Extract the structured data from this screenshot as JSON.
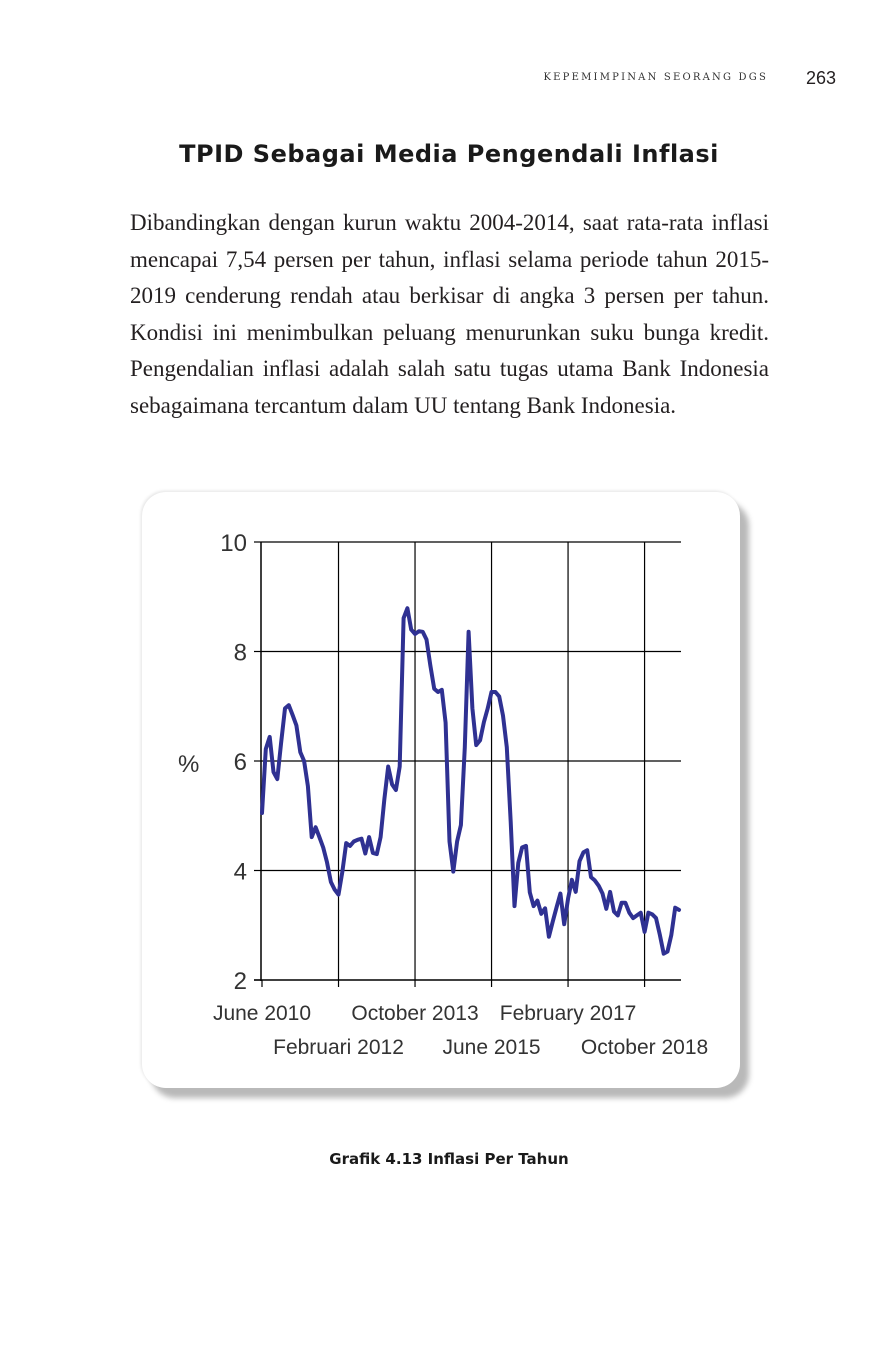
{
  "header": {
    "running_head": "KEPEMIMPINAN SEORANG DGS",
    "page_number": "263"
  },
  "section": {
    "title": "TPID Sebagai Media Pengendali Inflasi",
    "paragraph": "Dibandingkan dengan kurun waktu 2004-2014, saat rata-rata inflasi mencapai 7,54 persen per tahun, inflasi selama periode tahun 2015-2019 cenderung rendah atau berkisar di angka 3 persen per tahun. Kondisi ini menimbulkan peluang menurunkan suku bunga kredit. Pengendalian inflasi adalah salah satu tugas utama Bank Indonesia sebagaimana tercantum dalam UU tentang Bank Indonesia."
  },
  "figure": {
    "caption": "Grafik 4.13 Inflasi Per Tahun"
  },
  "chart_data": {
    "type": "line",
    "title": "",
    "xlabel": "",
    "ylabel": "%",
    "ylim": [
      2,
      10
    ],
    "yticks": [
      2,
      4,
      6,
      8,
      10
    ],
    "grid": true,
    "legend": "none",
    "xtick_labels": [
      {
        "label": "June 2010",
        "index": 0,
        "row": 1
      },
      {
        "label": "Februari 2012",
        "index": 20,
        "row": 2
      },
      {
        "label": "October 2013",
        "index": 40,
        "row": 1
      },
      {
        "label": "June 2015",
        "index": 60,
        "row": 2
      },
      {
        "label": "February 2017",
        "index": 80,
        "row": 1
      },
      {
        "label": "October 2018",
        "index": 100,
        "row": 2
      }
    ],
    "line_color": "#2f3192",
    "series": [
      {
        "x_start": "June 2010",
        "frequency": "monthly",
        "values": [
          5.05,
          6.22,
          6.44,
          5.8,
          5.67,
          6.33,
          6.96,
          7.02,
          6.84,
          6.65,
          6.16,
          6.0,
          5.54,
          4.61,
          4.79,
          4.61,
          4.42,
          4.15,
          3.79,
          3.65,
          3.56,
          3.97,
          4.5,
          4.45,
          4.53,
          4.56,
          4.58,
          4.31,
          4.61,
          4.32,
          4.3,
          4.61,
          5.31,
          5.9,
          5.57,
          5.47,
          5.9,
          8.61,
          8.79,
          8.4,
          8.32,
          8.37,
          8.36,
          8.22,
          7.75,
          7.32,
          7.26,
          7.3,
          6.7,
          4.53,
          3.98,
          4.53,
          4.83,
          6.25,
          8.36,
          6.96,
          6.29,
          6.38,
          6.71,
          6.96,
          7.26,
          7.26,
          7.18,
          6.83,
          6.25,
          4.89,
          3.35,
          4.14,
          4.42,
          4.45,
          3.6,
          3.35,
          3.45,
          3.21,
          3.31,
          2.79,
          3.07,
          3.33,
          3.58,
          3.02,
          3.49,
          3.83,
          3.61,
          4.17,
          4.33,
          4.37,
          3.88,
          3.82,
          3.72,
          3.58,
          3.3,
          3.61,
          3.25,
          3.18,
          3.41,
          3.41,
          3.23,
          3.13,
          3.18,
          3.23,
          2.88,
          3.23,
          3.2,
          3.13,
          2.82,
          2.48,
          2.52,
          2.82,
          3.32,
          3.28
        ]
      }
    ]
  }
}
